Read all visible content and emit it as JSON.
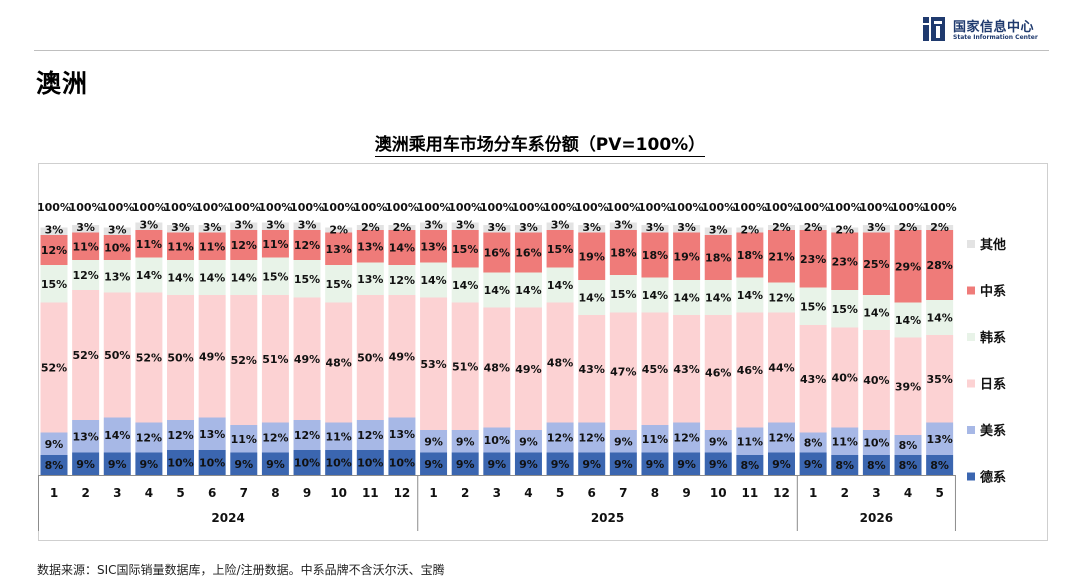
{
  "header": {
    "org_name_cn": "国家信息中心",
    "org_name_en": "State Information Center",
    "page_title": "澳洲"
  },
  "colors": {
    "logo": "#1f3a6e",
    "other": "#e3e3e3",
    "china": "#ef7b79",
    "korea": "#e8f3e8",
    "japan": "#fcd2d3",
    "usa": "#a7b8e6",
    "germany": "#3b66b0"
  },
  "chart_data": {
    "type": "bar",
    "stacked": true,
    "title": "澳洲乘用车市场分车系份额（PV=100%）",
    "total_label": "100%",
    "categories": [
      "1",
      "2",
      "3",
      "4",
      "5",
      "6",
      "7",
      "8",
      "9",
      "10",
      "11",
      "12",
      "1",
      "2",
      "3",
      "4",
      "5",
      "6",
      "7",
      "8",
      "9",
      "10",
      "11",
      "12",
      "1",
      "2",
      "3",
      "4",
      "5"
    ],
    "groups": [
      {
        "label": "2024",
        "start": 0,
        "count": 12
      },
      {
        "label": "2025",
        "start": 12,
        "count": 12
      },
      {
        "label": "2026",
        "start": 24,
        "count": 5
      }
    ],
    "ylim": [
      0,
      100
    ],
    "legend_position": "right",
    "series": [
      {
        "name": "德系",
        "color": "#3b66b0",
        "values": [
          8,
          9,
          9,
          9,
          10,
          10,
          9,
          9,
          10,
          10,
          10,
          10,
          9,
          9,
          9,
          9,
          9,
          9,
          9,
          9,
          9,
          9,
          8,
          9,
          9,
          8,
          8,
          8,
          8
        ]
      },
      {
        "name": "美系",
        "color": "#a7b8e6",
        "values": [
          9,
          13,
          14,
          12,
          12,
          13,
          11,
          12,
          12,
          11,
          12,
          13,
          9,
          9,
          10,
          9,
          12,
          12,
          9,
          11,
          12,
          9,
          11,
          12,
          8,
          11,
          10,
          8,
          13
        ]
      },
      {
        "name": "日系",
        "color": "#fcd2d3",
        "values": [
          52,
          52,
          50,
          52,
          50,
          49,
          52,
          51,
          49,
          48,
          50,
          49,
          53,
          51,
          48,
          49,
          48,
          43,
          47,
          45,
          43,
          46,
          46,
          44,
          43,
          40,
          40,
          39,
          35
        ]
      },
      {
        "name": "韩系",
        "color": "#e8f3e8",
        "values": [
          15,
          12,
          13,
          14,
          14,
          14,
          14,
          15,
          15,
          15,
          13,
          12,
          14,
          14,
          14,
          14,
          14,
          14,
          15,
          14,
          14,
          14,
          14,
          12,
          15,
          15,
          14,
          14,
          14
        ]
      },
      {
        "name": "中系",
        "color": "#ef7b79",
        "values": [
          12,
          11,
          10,
          11,
          11,
          11,
          12,
          11,
          12,
          13,
          13,
          14,
          13,
          15,
          16,
          16,
          15,
          19,
          18,
          18,
          19,
          18,
          18,
          21,
          23,
          23,
          25,
          29,
          28
        ]
      },
      {
        "name": "其他",
        "color": "#e3e3e3",
        "values": [
          3,
          3,
          3,
          3,
          3,
          3,
          3,
          3,
          3,
          2,
          2,
          2,
          3,
          3,
          3,
          3,
          3,
          3,
          3,
          3,
          3,
          3,
          2,
          2,
          2,
          2,
          3,
          2,
          2
        ]
      }
    ],
    "legend_order": [
      "其他",
      "中系",
      "韩系",
      "日系",
      "美系",
      "德系"
    ]
  },
  "footer": {
    "source": "数据来源：SIC国际销量数据库，上险/注册数据。中系品牌不含沃尔沃、宝腾"
  }
}
